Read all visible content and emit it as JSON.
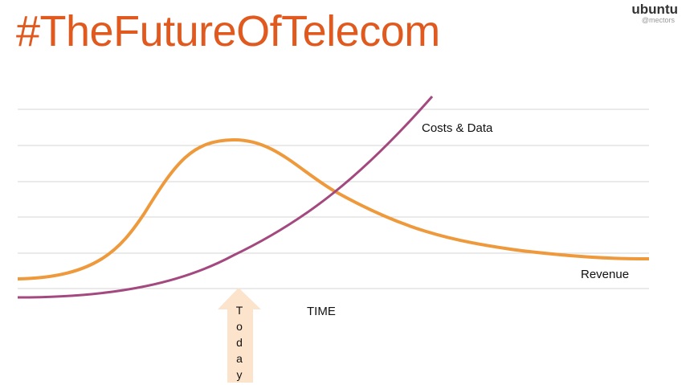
{
  "header": {
    "title": "#TheFutureOfTelecom",
    "logo": "ubuntu",
    "handle": "@mectors"
  },
  "labels": {
    "costs": "Costs & Data",
    "revenue": "Revenue",
    "time": "TIME",
    "today": "Today"
  }
}
